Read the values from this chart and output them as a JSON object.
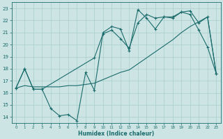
{
  "xlabel": "Humidex (Indice chaleur)",
  "bg_color": "#cde4e4",
  "grid_color": "#aacece",
  "line_color": "#1a6b6b",
  "xlim": [
    -0.5,
    23.5
  ],
  "ylim": [
    13.5,
    23.5
  ],
  "yticks": [
    14,
    15,
    16,
    17,
    18,
    19,
    20,
    21,
    22,
    23
  ],
  "xticks": [
    0,
    1,
    2,
    3,
    4,
    5,
    6,
    7,
    8,
    9,
    10,
    11,
    12,
    13,
    14,
    15,
    16,
    17,
    18,
    19,
    20,
    21,
    22,
    23
  ],
  "line1_x": [
    0,
    1,
    2,
    3,
    4,
    5,
    6,
    7,
    8,
    9,
    10,
    11,
    12,
    13,
    14,
    15,
    16,
    17,
    18,
    19,
    20,
    21,
    22,
    23
  ],
  "line1_y": [
    16.4,
    18.0,
    16.3,
    16.3,
    14.7,
    14.1,
    14.2,
    13.7,
    17.7,
    16.2,
    21.0,
    21.5,
    21.3,
    19.5,
    22.9,
    22.2,
    21.3,
    22.3,
    22.2,
    22.7,
    22.5,
    21.2,
    19.8,
    17.6
  ],
  "line2_x": [
    0,
    1,
    2,
    3,
    4,
    5,
    6,
    7,
    8,
    9,
    10,
    11,
    12,
    13,
    14,
    15,
    16,
    17,
    18,
    19,
    20,
    21,
    22,
    23
  ],
  "line2_y": [
    16.4,
    16.6,
    16.5,
    16.5,
    16.5,
    16.5,
    16.6,
    16.6,
    16.7,
    16.8,
    17.1,
    17.4,
    17.7,
    17.9,
    18.4,
    18.9,
    19.4,
    19.9,
    20.4,
    21.0,
    21.5,
    21.9,
    22.3,
    17.6
  ],
  "line3_x": [
    0,
    1,
    2,
    3,
    9,
    10,
    11,
    12,
    13,
    14,
    15,
    16,
    17,
    18,
    19,
    20,
    21,
    22,
    23
  ],
  "line3_y": [
    16.4,
    18.0,
    16.3,
    16.3,
    18.9,
    20.9,
    21.2,
    20.5,
    19.7,
    21.8,
    22.5,
    22.2,
    22.3,
    22.3,
    22.7,
    22.8,
    21.8,
    22.3,
    17.6
  ]
}
